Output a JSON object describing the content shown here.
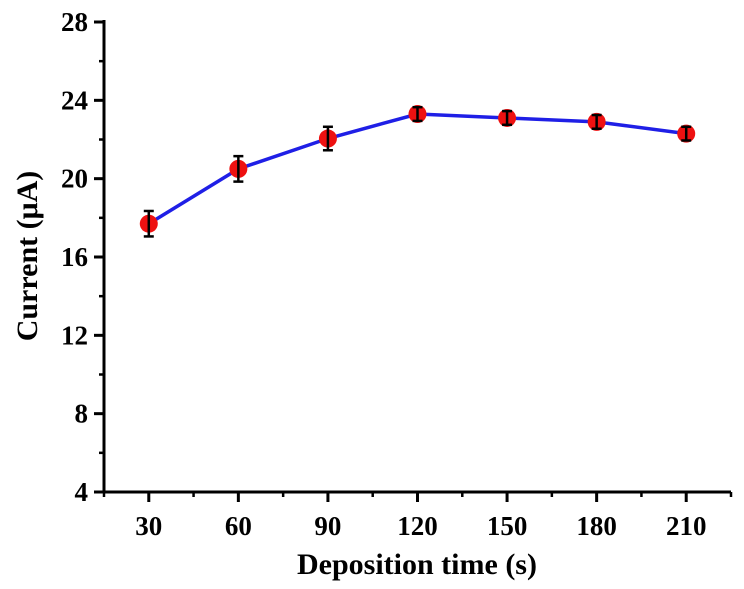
{
  "chart_data": {
    "type": "line",
    "title": "",
    "xlabel": "Deposition time (s)",
    "ylabel": "Current (μA)",
    "x": [
      30,
      60,
      90,
      120,
      150,
      180,
      210
    ],
    "xticks": [
      "30",
      "60",
      "90",
      "120",
      "150",
      "180",
      "210"
    ],
    "yticks": [
      "4",
      "8",
      "12",
      "16",
      "20",
      "24",
      "28"
    ],
    "xlim": [
      15,
      225
    ],
    "ylim": [
      4,
      28
    ],
    "series": [
      {
        "values": [
          17.7,
          20.5,
          22.05,
          23.3,
          23.1,
          22.9,
          22.3
        ],
        "error": [
          0.65,
          0.65,
          0.6,
          0.35,
          0.35,
          0.35,
          0.35
        ]
      }
    ],
    "line_color": "#1f1fe6",
    "marker_color": "#ee1111",
    "grid": false,
    "legend": "none"
  }
}
